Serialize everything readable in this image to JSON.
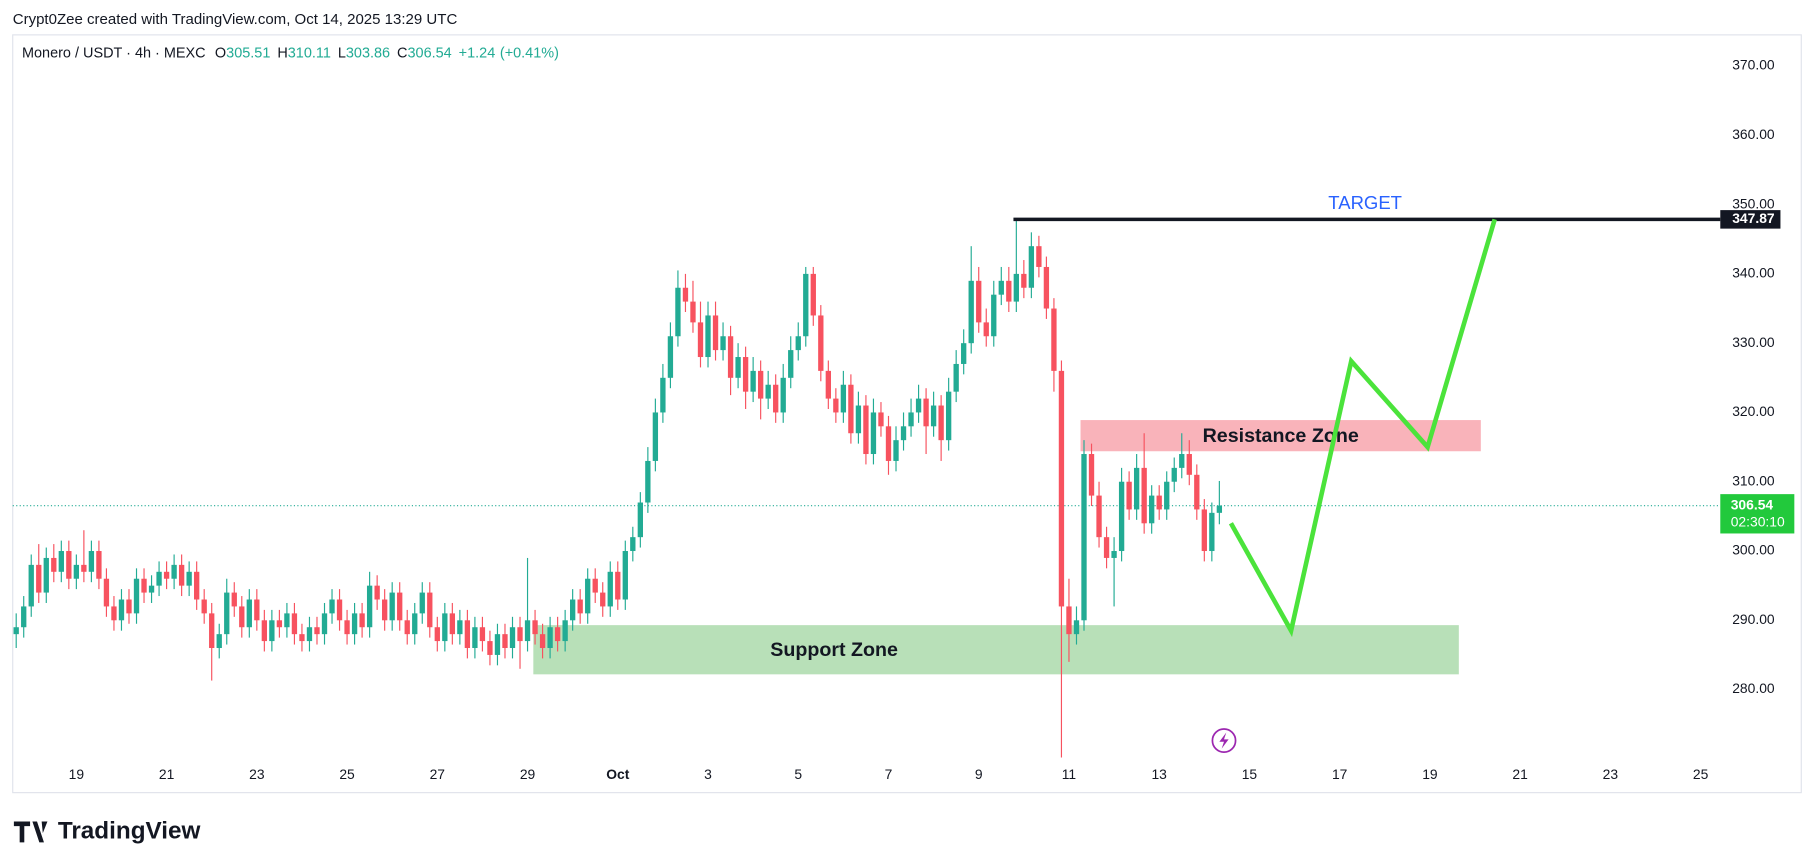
{
  "header": {
    "attribution": "Crypt0Zee created with TradingView.com, Oct 14, 2025 13:29 UTC",
    "brand": "TradingView"
  },
  "chart_data": {
    "type": "candlestick",
    "symbol": "Monero / USDT · 4h · MEXC",
    "legend": [
      {
        "label": "O",
        "value": 305.51
      },
      {
        "label": "H",
        "value": 310.11
      },
      {
        "label": "L",
        "value": 303.86
      },
      {
        "label": "C",
        "value": 306.54
      }
    ],
    "change": {
      "value": 1.24,
      "label": "+1.24"
    },
    "change_pct": {
      "value": 0.41,
      "label": "(+0.41%)"
    },
    "colors": {
      "up": "#22ab94",
      "down": "#f7525f",
      "legend": "#22ab94",
      "target": "#2962ff",
      "projection": "#4be33b"
    },
    "x_labels": [
      "19",
      "21",
      "23",
      "25",
      "27",
      "29",
      "Oct",
      "3",
      "5",
      "7",
      "9",
      "11",
      "13",
      "15",
      "17",
      "19",
      "21",
      "23",
      "25"
    ],
    "ylim": [
      269.8,
      374.5
    ],
    "yticks": [
      {
        "value": 280,
        "label": "280.00"
      },
      {
        "value": 290,
        "label": "290.00"
      },
      {
        "value": 300,
        "label": "300.00"
      },
      {
        "value": 310,
        "label": "310.00"
      },
      {
        "value": 320,
        "label": "320.00"
      },
      {
        "value": 330,
        "label": "330.00"
      },
      {
        "value": 340,
        "label": "340.00"
      },
      {
        "value": 350,
        "label": "350.00"
      },
      {
        "value": 360,
        "label": "360.00"
      },
      {
        "value": 370,
        "label": "370.00"
      }
    ],
    "ohlc": [
      [
        288,
        291,
        286,
        289
      ],
      [
        289,
        293.5,
        287.5,
        292
      ],
      [
        292,
        299.5,
        290.5,
        298
      ],
      [
        298,
        301,
        292.5,
        294
      ],
      [
        294,
        300.5,
        292.5,
        299
      ],
      [
        299,
        301,
        295.5,
        297
      ],
      [
        297,
        301.5,
        295.5,
        300
      ],
      [
        300,
        301.5,
        294.5,
        296
      ],
      [
        296,
        299.5,
        294.5,
        298
      ],
      [
        298,
        303,
        295.5,
        297
      ],
      [
        297,
        301.5,
        295.5,
        300
      ],
      [
        300,
        301.5,
        294.5,
        296
      ],
      [
        296,
        297.5,
        290.5,
        292
      ],
      [
        292,
        293.5,
        288.5,
        290
      ],
      [
        290,
        294.5,
        288.5,
        293
      ],
      [
        293,
        294.5,
        289.5,
        291
      ],
      [
        291,
        297.5,
        289.5,
        296
      ],
      [
        296,
        297.5,
        292.5,
        294
      ],
      [
        294,
        296.5,
        292.5,
        295
      ],
      [
        295,
        298.5,
        293.5,
        297
      ],
      [
        297,
        298.5,
        294.5,
        296
      ],
      [
        296,
        299.5,
        294.5,
        298
      ],
      [
        298,
        299.5,
        293.5,
        295
      ],
      [
        295,
        298.5,
        293.5,
        297
      ],
      [
        297,
        298.5,
        291.5,
        293
      ],
      [
        293,
        294.5,
        289.5,
        291
      ],
      [
        291,
        292.5,
        281.3,
        286
      ],
      [
        286,
        289.5,
        284.5,
        288
      ],
      [
        288,
        296,
        286.5,
        294
      ],
      [
        294,
        295.5,
        290.5,
        292
      ],
      [
        292,
        293.5,
        287.5,
        289
      ],
      [
        289,
        294.5,
        287.5,
        293
      ],
      [
        293,
        294.5,
        288.5,
        290
      ],
      [
        290,
        291.5,
        285.5,
        287
      ],
      [
        287,
        291.5,
        285.5,
        290
      ],
      [
        290,
        291.5,
        287.5,
        289
      ],
      [
        289,
        292.5,
        287.5,
        291
      ],
      [
        291,
        292.5,
        286.5,
        288
      ],
      [
        288,
        289.5,
        285.5,
        287
      ],
      [
        287,
        290.5,
        285.5,
        289
      ],
      [
        289,
        290.5,
        286.5,
        288
      ],
      [
        288,
        292.5,
        286.5,
        291
      ],
      [
        291,
        294.5,
        289.5,
        293
      ],
      [
        293,
        294.5,
        288.5,
        290
      ],
      [
        290,
        291.5,
        286.5,
        288
      ],
      [
        288,
        292.5,
        286.5,
        291
      ],
      [
        291,
        292.5,
        287.5,
        289
      ],
      [
        289,
        297,
        287.5,
        295
      ],
      [
        295,
        296.5,
        291.5,
        293
      ],
      [
        293,
        294.5,
        288.5,
        290
      ],
      [
        290,
        295.5,
        288.5,
        294
      ],
      [
        294,
        295.5,
        288.5,
        290
      ],
      [
        290,
        291.5,
        286.5,
        288
      ],
      [
        288,
        292.5,
        286.5,
        291
      ],
      [
        291,
        295.5,
        289.5,
        294
      ],
      [
        294,
        295.5,
        287.5,
        289
      ],
      [
        289,
        290.5,
        285.5,
        287
      ],
      [
        287,
        292.5,
        285.5,
        291
      ],
      [
        291,
        292.5,
        286.5,
        288
      ],
      [
        288,
        291.5,
        286.5,
        290
      ],
      [
        290,
        291.5,
        284.5,
        286
      ],
      [
        286,
        290.5,
        284.5,
        289
      ],
      [
        289,
        290.5,
        285.5,
        287
      ],
      [
        287,
        288.5,
        283.5,
        285
      ],
      [
        285,
        289.5,
        283.5,
        288
      ],
      [
        288,
        289.5,
        284.5,
        286
      ],
      [
        286,
        290.5,
        284.5,
        289
      ],
      [
        289,
        290.5,
        283,
        287
      ],
      [
        287,
        299,
        285.5,
        290
      ],
      [
        290,
        291.5,
        286.5,
        288
      ],
      [
        288,
        289.5,
        284.5,
        286
      ],
      [
        286,
        290.5,
        284.5,
        289
      ],
      [
        289,
        290.5,
        285.5,
        287
      ],
      [
        287,
        291.5,
        285.5,
        290
      ],
      [
        290,
        294.5,
        288.5,
        293
      ],
      [
        293,
        294.5,
        289.5,
        291
      ],
      [
        291,
        297.5,
        289.5,
        296
      ],
      [
        296,
        297.5,
        292.5,
        294
      ],
      [
        294,
        295.5,
        290.5,
        292
      ],
      [
        292,
        298.5,
        290.5,
        297
      ],
      [
        297,
        298.5,
        291.5,
        293
      ],
      [
        293,
        301.5,
        291.5,
        300
      ],
      [
        300,
        303.5,
        298.5,
        302
      ],
      [
        302,
        308.5,
        300.5,
        307
      ],
      [
        307,
        315,
        305.5,
        313
      ],
      [
        313,
        322,
        311.5,
        320
      ],
      [
        320,
        327,
        318.5,
        325
      ],
      [
        325,
        333,
        323.5,
        331
      ],
      [
        331,
        340.5,
        329.5,
        338
      ],
      [
        338,
        340,
        334.5,
        336
      ],
      [
        336,
        339,
        331.5,
        333
      ],
      [
        333,
        336,
        326.5,
        328
      ],
      [
        328,
        336,
        326.5,
        334
      ],
      [
        334,
        336,
        327.5,
        329
      ],
      [
        329,
        333,
        327.5,
        331
      ],
      [
        331,
        332.5,
        322.5,
        325
      ],
      [
        325,
        330,
        323.5,
        328
      ],
      [
        328,
        329.5,
        320.5,
        323
      ],
      [
        323,
        328,
        321.5,
        326
      ],
      [
        326,
        327.5,
        319,
        322
      ],
      [
        322,
        326,
        320.5,
        324
      ],
      [
        324,
        325.5,
        318.5,
        320
      ],
      [
        320,
        327,
        318.5,
        325
      ],
      [
        325,
        331,
        323.5,
        329
      ],
      [
        329,
        333,
        327.5,
        331
      ],
      [
        331,
        341,
        329.5,
        340
      ],
      [
        340,
        341,
        332.5,
        334
      ],
      [
        334,
        335.5,
        324.5,
        326
      ],
      [
        326,
        327.5,
        320.5,
        322
      ],
      [
        322,
        323.5,
        318.5,
        320
      ],
      [
        320,
        326,
        318.5,
        324
      ],
      [
        324,
        325.5,
        315.5,
        317
      ],
      [
        317,
        323,
        315.5,
        321
      ],
      [
        321,
        322.5,
        312.5,
        314
      ],
      [
        314,
        322,
        312.5,
        320
      ],
      [
        320,
        321.5,
        316.5,
        318
      ],
      [
        318,
        319.5,
        311,
        313
      ],
      [
        313,
        318,
        311.5,
        316
      ],
      [
        316,
        320,
        314.5,
        318
      ],
      [
        318,
        322,
        316.5,
        320
      ],
      [
        320,
        324,
        318.5,
        322
      ],
      [
        322,
        323.5,
        314,
        318
      ],
      [
        318,
        323,
        316.5,
        321
      ],
      [
        321,
        322.5,
        313,
        316
      ],
      [
        316,
        325,
        314.5,
        323
      ],
      [
        323,
        329,
        321.5,
        327
      ],
      [
        327,
        332,
        325.5,
        330
      ],
      [
        330,
        344,
        328.5,
        339
      ],
      [
        339,
        341,
        331.5,
        333
      ],
      [
        333,
        335,
        329.5,
        331
      ],
      [
        331,
        339,
        329.5,
        337
      ],
      [
        337,
        341,
        335.5,
        339
      ],
      [
        339,
        341,
        334.5,
        336
      ],
      [
        336,
        347.87,
        334.5,
        340
      ],
      [
        340,
        342,
        336.5,
        338
      ],
      [
        338,
        346,
        336.5,
        344
      ],
      [
        344,
        345.5,
        339.5,
        341
      ],
      [
        341,
        342.5,
        333.5,
        335
      ],
      [
        335,
        336.5,
        323,
        326
      ],
      [
        326,
        327.5,
        270.2,
        292
      ],
      [
        292,
        296,
        284,
        288
      ],
      [
        288,
        292,
        286.5,
        290
      ],
      [
        290,
        316,
        288.5,
        314
      ],
      [
        314,
        315.5,
        306.5,
        308
      ],
      [
        308,
        310,
        300.5,
        302
      ],
      [
        302,
        303.5,
        297.5,
        299
      ],
      [
        299,
        302,
        292,
        300
      ],
      [
        300,
        312,
        298.5,
        310
      ],
      [
        310,
        311.5,
        304.5,
        306
      ],
      [
        306,
        314,
        304.5,
        312
      ],
      [
        312,
        317,
        302.5,
        304
      ],
      [
        304,
        309.5,
        302.5,
        308
      ],
      [
        308,
        309.5,
        304.5,
        306
      ],
      [
        306,
        311.5,
        304.5,
        310
      ],
      [
        310,
        313.5,
        308.5,
        312
      ],
      [
        312,
        317,
        310.5,
        314
      ],
      [
        314,
        316,
        309.5,
        311
      ],
      [
        311,
        312.5,
        304.5,
        306
      ],
      [
        306,
        307.5,
        298.5,
        300
      ],
      [
        300,
        307,
        298.5,
        305.51
      ],
      [
        305.51,
        310.11,
        303.86,
        306.54
      ]
    ],
    "last_price": {
      "value": 306.54,
      "countdown": "02:30:10"
    },
    "annotations": {
      "target": {
        "label": "TARGET",
        "value": 347.87
      },
      "resistance": {
        "label": "Resistance Zone",
        "range": [
          314.4,
          318.9
        ],
        "color": "#f9b3ba"
      },
      "support": {
        "label": "Support Zone",
        "range": [
          282.2,
          289.3
        ],
        "color": "#b8e0b8"
      },
      "projection": [
        304,
        288.5,
        327.4,
        315,
        347.87
      ]
    }
  }
}
